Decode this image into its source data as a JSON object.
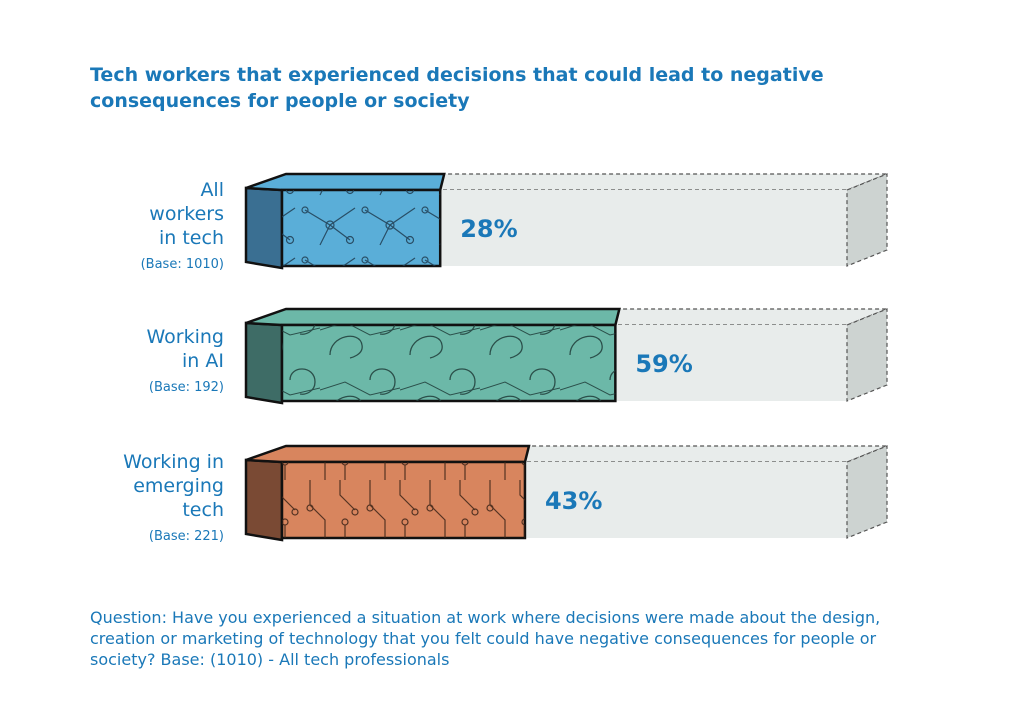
{
  "chart_data": {
    "type": "bar",
    "orientation": "horizontal",
    "title": "Tech workers that experienced decisions that could lead to negative consequences for people or society",
    "categories": [
      {
        "label_lines": [
          "All",
          "workers",
          "in tech"
        ],
        "base": "(Base: 1010)"
      },
      {
        "label_lines": [
          "Working",
          "in AI"
        ],
        "base": "(Base: 192)"
      },
      {
        "label_lines": [
          "Working in",
          "emerging",
          "tech"
        ],
        "base": "(Base: 221)"
      }
    ],
    "values": [
      28,
      59,
      43
    ],
    "value_labels": [
      "28%",
      "59%",
      "43%"
    ],
    "xlim": [
      0,
      100
    ],
    "unit": "%",
    "grid": false,
    "colors": {
      "fills": [
        "#5aaed8",
        "#6cb8a8",
        "#d8855e"
      ],
      "sides": [
        "#3a6f92",
        "#3e6c66",
        "#7a4a34"
      ],
      "track": "#e8eceb",
      "track_side": "#cdd3d1",
      "text": "#1a78b8"
    }
  },
  "footnote": "Question: Have you experienced a situation at work where decisions were made about the design, creation or marketing of technology that you felt could have negative consequences for people or society? Base: (1010) - All tech professionals"
}
